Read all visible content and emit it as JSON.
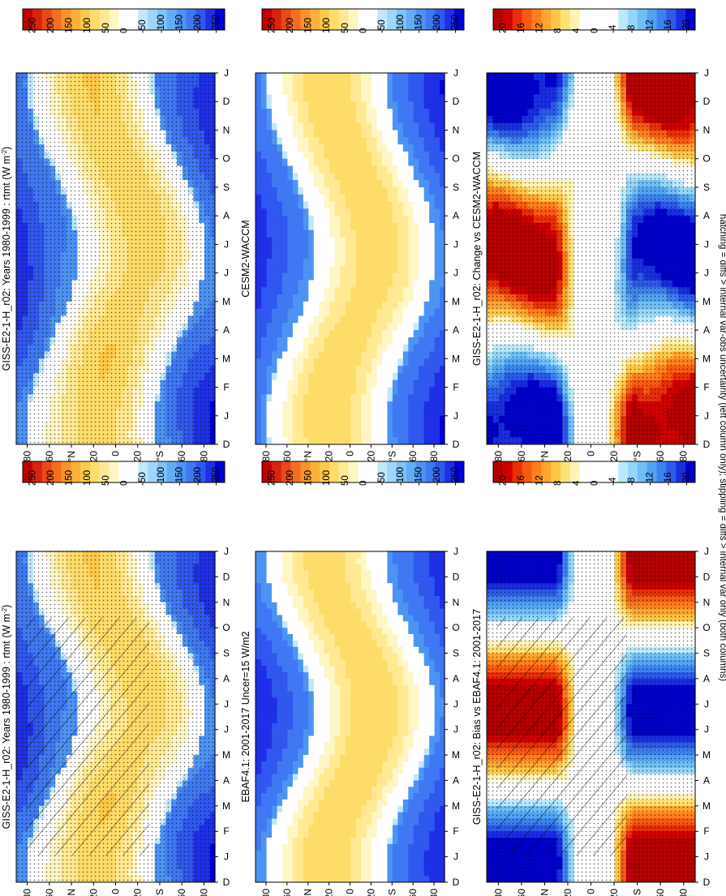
{
  "figure": {
    "footnote": "hatching = diffs > internal var-obs uncertainty (left column only); stippling = diffs > internal var only (both columns)"
  },
  "colors": {
    "abs_scale": [
      "#0000d8",
      "#1e2fe6",
      "#3057ee",
      "#3f78f2",
      "#4d93f4",
      "#62acf6",
      "#7dc3f7",
      "#9dd6f9",
      "#c1e7fb",
      "#ffffff",
      "#ffffff",
      "#fff6c6",
      "#ffe992",
      "#fedc6a",
      "#fdc94a",
      "#fbb03a",
      "#f7922d",
      "#f26f21",
      "#e84a15",
      "#d7240c",
      "#c00000"
    ],
    "diff_scale": [
      "#0000c8",
      "#1a2ee0",
      "#2d5ae8",
      "#3c82ee",
      "#52a3f2",
      "#6fbef6",
      "#93d6f8",
      "#bbe9fb",
      "#ffffff",
      "#ffffff",
      "#ffffff",
      "#ffffff",
      "#fff4b5",
      "#ffe177",
      "#ffc748",
      "#ffa62e",
      "#ff7f1e",
      "#f85a12",
      "#e83008",
      "#d00000",
      "#b40000"
    ]
  },
  "chart_data": [
    {
      "type": "heatmap",
      "title": "GISS-E2-1-H_r02: Years 1980-1999 : rtmt (W m",
      "title_sup": "-2",
      "title_end": ")",
      "x_ticks": [
        "D",
        "J",
        "F",
        "M",
        "A",
        "M",
        "J",
        "J",
        "A",
        "S",
        "O",
        "N",
        "D",
        "J"
      ],
      "y_ticks": [
        "80",
        "60",
        "°N",
        "20",
        "0",
        "20",
        "°S",
        "60",
        "80"
      ],
      "y_range": [
        90,
        -90
      ],
      "colorbar_labels": [
        "250",
        "200",
        "150",
        "100",
        "50",
        "0",
        "-50",
        "-100",
        "-150",
        "-200",
        "-250"
      ],
      "field": "abs",
      "variant": "model",
      "hatching": true,
      "stippling": true
    },
    {
      "type": "heatmap",
      "title": "GISS-E2-1-H_r02: Years 1980-1999 : rtmt (W m",
      "title_sup": "-2",
      "title_end": ")",
      "x_ticks": [
        "D",
        "J",
        "F",
        "M",
        "A",
        "M",
        "J",
        "J",
        "A",
        "S",
        "O",
        "N",
        "D",
        "J"
      ],
      "y_ticks": [
        "80",
        "60",
        "°N",
        "20",
        "0",
        "20",
        "°S",
        "60",
        "80"
      ],
      "y_range": [
        90,
        -90
      ],
      "colorbar_labels": [
        "250",
        "200",
        "150",
        "100",
        "50",
        "0",
        "-50",
        "-100",
        "-150",
        "-200",
        "-250"
      ],
      "field": "abs",
      "variant": "model",
      "hatching": false,
      "stippling": true
    },
    {
      "type": "heatmap",
      "title": "EBAF4.1: 2001-2017 Uncer=15 W/m2",
      "title_sup": "",
      "title_end": "",
      "x_ticks": [
        "D",
        "J",
        "F",
        "M",
        "A",
        "M",
        "J",
        "J",
        "A",
        "S",
        "O",
        "N",
        "D",
        "J"
      ],
      "y_ticks": [
        "80",
        "60",
        "°N",
        "20",
        "0",
        "20",
        "°S",
        "60",
        "80"
      ],
      "y_range": [
        90,
        -90
      ],
      "colorbar_labels": [
        "250",
        "200",
        "150",
        "100",
        "50",
        "0",
        "-50",
        "-100",
        "-150",
        "-200",
        "-250"
      ],
      "field": "abs",
      "variant": "obs",
      "hatching": false,
      "stippling": false
    },
    {
      "type": "heatmap",
      "title": "CESM2-WACCM",
      "title_sup": "",
      "title_end": "",
      "x_ticks": [
        "D",
        "J",
        "F",
        "M",
        "A",
        "M",
        "J",
        "J",
        "A",
        "S",
        "O",
        "N",
        "D",
        "J"
      ],
      "y_ticks": [
        "80",
        "60",
        "°N",
        "20",
        "0",
        "20",
        "°S",
        "60",
        "80"
      ],
      "y_range": [
        90,
        -90
      ],
      "colorbar_labels": [
        "250",
        "200",
        "150",
        "100",
        "50",
        "0",
        "-50",
        "-100",
        "-150",
        "-200",
        "-250"
      ],
      "field": "abs",
      "variant": "cesm",
      "hatching": false,
      "stippling": false
    },
    {
      "type": "heatmap",
      "title": "GISS-E2-1-H_r02: Bias vs EBAF4.1: 2001-2017",
      "title_sup": "",
      "title_end": "",
      "x_ticks": [
        "D",
        "J",
        "F",
        "M",
        "A",
        "M",
        "J",
        "J",
        "A",
        "S",
        "O",
        "N",
        "D",
        "J"
      ],
      "y_ticks": [
        "80",
        "60",
        "°N",
        "20",
        "0",
        "20",
        "°S",
        "60",
        "80"
      ],
      "y_range": [
        90,
        -90
      ],
      "colorbar_labels": [
        "20",
        "16",
        "12",
        "8",
        "4",
        "0",
        "-4",
        "-8",
        "-12",
        "-16",
        "-20"
      ],
      "field": "diff",
      "variant": "bias",
      "hatching": true,
      "stippling": true
    },
    {
      "type": "heatmap",
      "title": "GISS-E2-1-H_r02: Change vs CESM2-WACCM",
      "title_sup": "",
      "title_end": "",
      "x_ticks": [
        "D",
        "J",
        "F",
        "M",
        "A",
        "M",
        "J",
        "J",
        "A",
        "S",
        "O",
        "N",
        "D",
        "J"
      ],
      "y_ticks": [
        "80",
        "60",
        "°N",
        "20",
        "0",
        "20",
        "°S",
        "60",
        "80"
      ],
      "y_range": [
        90,
        -90
      ],
      "colorbar_labels": [
        "20",
        "16",
        "12",
        "8",
        "4",
        "0",
        "-4",
        "-8",
        "-12",
        "-16",
        "-20"
      ],
      "field": "diff",
      "variant": "change",
      "hatching": false,
      "stippling": true
    }
  ]
}
